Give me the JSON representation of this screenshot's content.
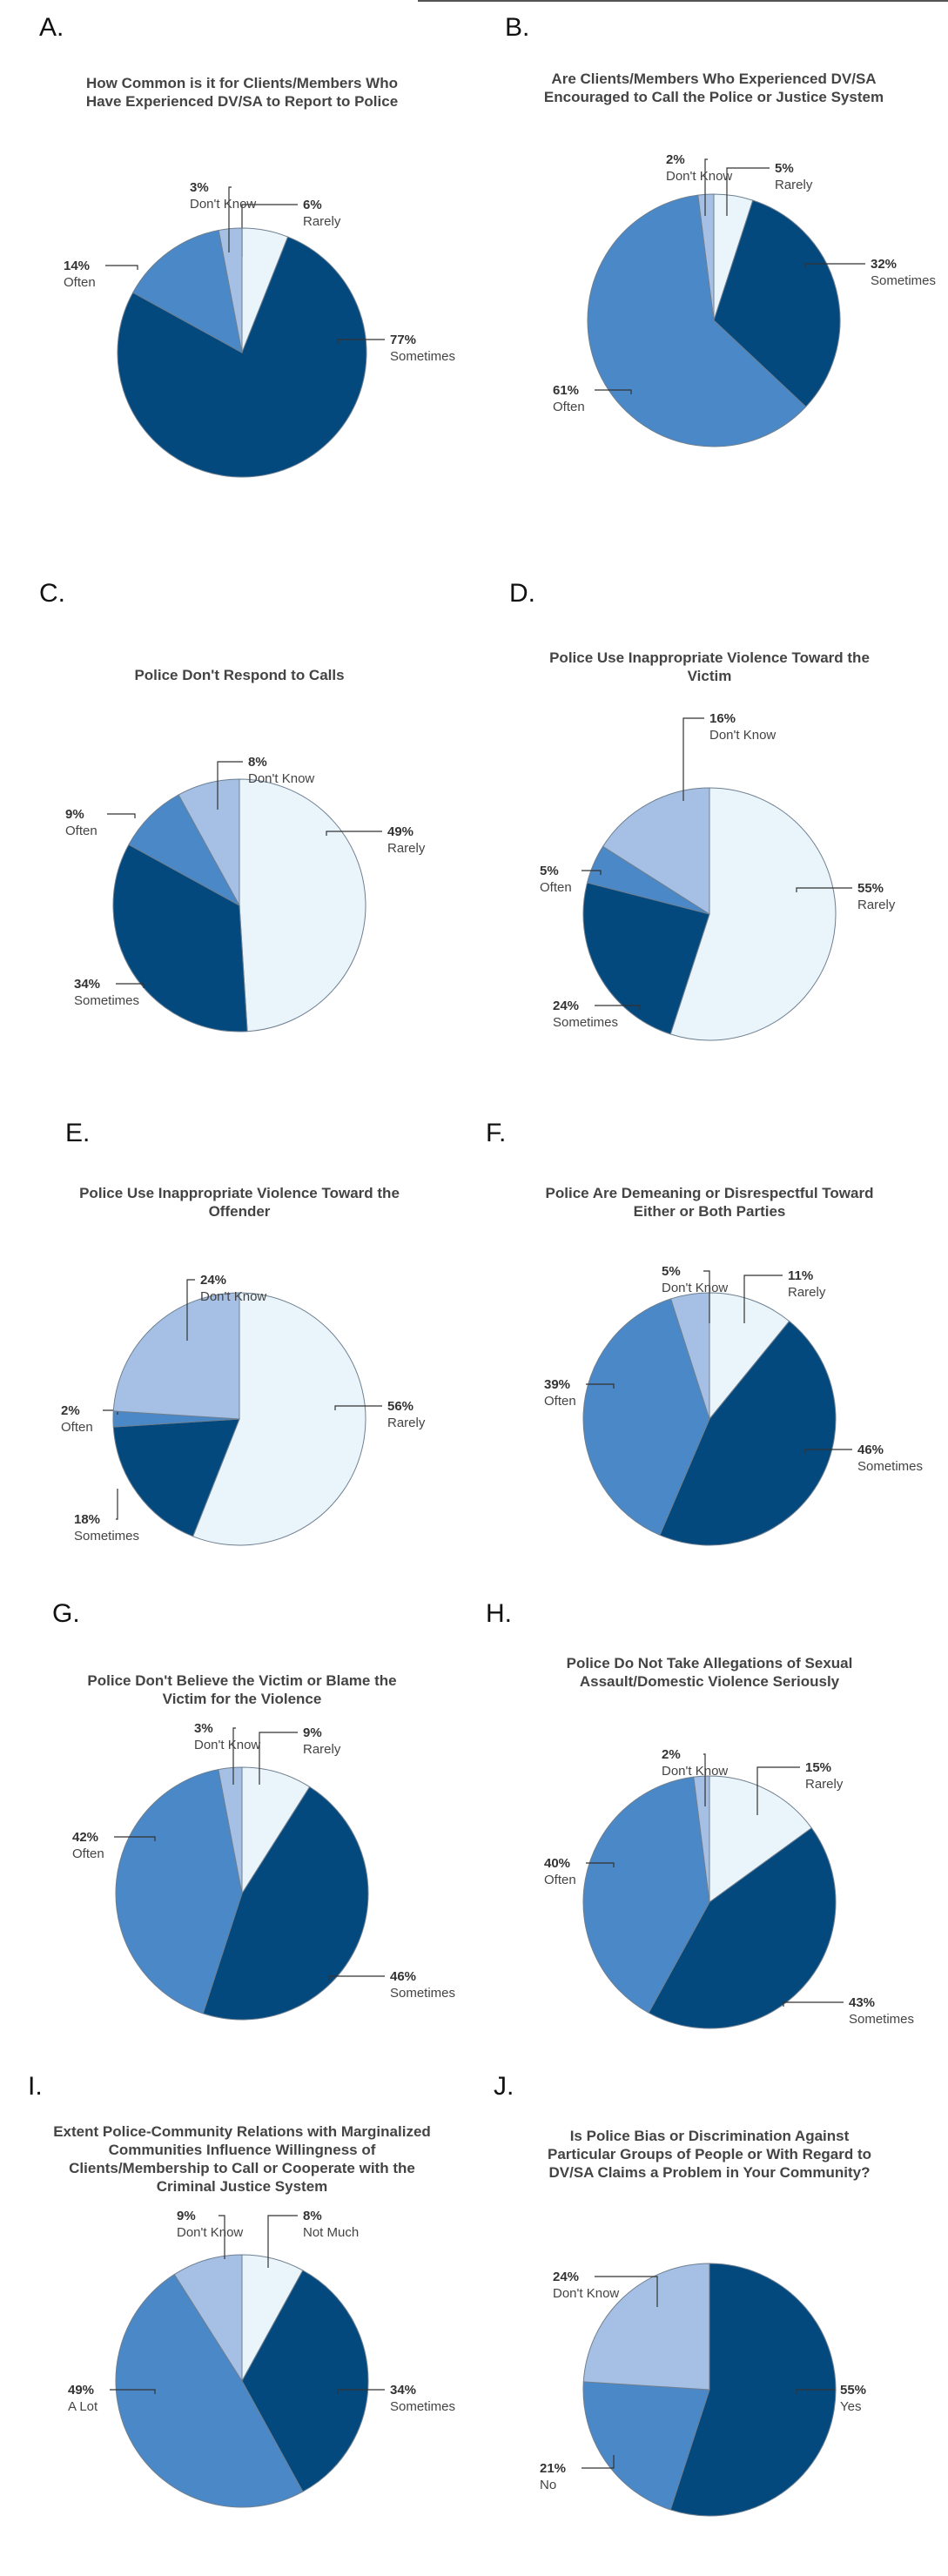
{
  "colors": {
    "Rarely": "#eaf4fb",
    "Sometimes": "#04497e",
    "Often": "#4a88c7",
    "Don't Know": "#a5c0e4",
    "Not Much": "#eaf4fb",
    "A Lot": "#4a88c7",
    "Yes": "#04497e",
    "No": "#4a88c7"
  },
  "chart_data": [
    {
      "letter": "A.",
      "type": "pie",
      "title": "How Common is it for Clients/Members Who Have Experienced DV/SA to Report to Police",
      "slices": [
        {
          "label": "Rarely",
          "pct": "6%",
          "value": 6
        },
        {
          "label": "Sometimes",
          "pct": "77%",
          "value": 77
        },
        {
          "label": "Often",
          "pct": "14%",
          "value": 14
        },
        {
          "label": "Don't Know",
          "pct": "3%",
          "value": 3
        }
      ]
    },
    {
      "letter": "B.",
      "type": "pie",
      "title": "Are Clients/Members Who Experienced DV/SA Encouraged to Call the Police or Justice System",
      "slices": [
        {
          "label": "Rarely",
          "pct": "5%",
          "value": 5
        },
        {
          "label": "Sometimes",
          "pct": "32%",
          "value": 32
        },
        {
          "label": "Often",
          "pct": "61%",
          "value": 61
        },
        {
          "label": "Don't Know",
          "pct": "2%",
          "value": 2
        }
      ]
    },
    {
      "letter": "C.",
      "type": "pie",
      "title": "Police Don't Respond to Calls",
      "slices": [
        {
          "label": "Rarely",
          "pct": "49%",
          "value": 49
        },
        {
          "label": "Sometimes",
          "pct": "34%",
          "value": 34
        },
        {
          "label": "Often",
          "pct": "9%",
          "value": 9
        },
        {
          "label": "Don't Know",
          "pct": "8%",
          "value": 8
        }
      ]
    },
    {
      "letter": "D.",
      "type": "pie",
      "title": "Police Use Inappropriate Violence Toward the Victim",
      "slices": [
        {
          "label": "Rarely",
          "pct": "55%",
          "value": 55
        },
        {
          "label": "Sometimes",
          "pct": "24%",
          "value": 24
        },
        {
          "label": "Often",
          "pct": "5%",
          "value": 5
        },
        {
          "label": "Don't Know",
          "pct": "16%",
          "value": 16
        }
      ]
    },
    {
      "letter": "E.",
      "type": "pie",
      "title": "Police Use Inappropriate Violence Toward the Offender",
      "slices": [
        {
          "label": "Rarely",
          "pct": "56%",
          "value": 56
        },
        {
          "label": "Sometimes",
          "pct": "18%",
          "value": 18
        },
        {
          "label": "Often",
          "pct": "2%",
          "value": 2
        },
        {
          "label": "Don't Know",
          "pct": "24%",
          "value": 24
        }
      ]
    },
    {
      "letter": "F.",
      "type": "pie",
      "title": "Police Are Demeaning or Disrespectful Toward Either or Both Parties",
      "slices": [
        {
          "label": "Rarely",
          "pct": "11%",
          "value": 11
        },
        {
          "label": "Sometimes",
          "pct": "46%",
          "value": 46
        },
        {
          "label": "Often",
          "pct": "39%",
          "value": 39
        },
        {
          "label": "Don't Know",
          "pct": "5%",
          "value": 5
        }
      ]
    },
    {
      "letter": "G.",
      "type": "pie",
      "title": "Police Don't Believe the Victim or Blame the Victim for the Violence",
      "slices": [
        {
          "label": "Rarely",
          "pct": "9%",
          "value": 9
        },
        {
          "label": "Sometimes",
          "pct": "46%",
          "value": 46
        },
        {
          "label": "Often",
          "pct": "42%",
          "value": 42
        },
        {
          "label": "Don't Know",
          "pct": "3%",
          "value": 3
        }
      ]
    },
    {
      "letter": "H.",
      "type": "pie",
      "title": "Police Do Not Take Allegations of Sexual Assault/Domestic Violence Seriously",
      "slices": [
        {
          "label": "Rarely",
          "pct": "15%",
          "value": 15
        },
        {
          "label": "Sometimes",
          "pct": "43%",
          "value": 43
        },
        {
          "label": "Often",
          "pct": "40%",
          "value": 40
        },
        {
          "label": "Don't Know",
          "pct": "2%",
          "value": 2
        }
      ]
    },
    {
      "letter": "I.",
      "type": "pie",
      "title": "Extent Police-Community Relations with Marginalized Communities Influence Willingness of Clients/Membership to Call or Cooperate with the Criminal Justice System",
      "slices": [
        {
          "label": "Not Much",
          "pct": "8%",
          "value": 8
        },
        {
          "label": "Sometimes",
          "pct": "34%",
          "value": 34
        },
        {
          "label": "A Lot",
          "pct": "49%",
          "value": 49
        },
        {
          "label": "Don't Know",
          "pct": "9%",
          "value": 9
        }
      ]
    },
    {
      "letter": "J.",
      "type": "pie",
      "title": "Is Police Bias or Discrimination Against Particular Groups of People or With Regard to DV/SA Claims a Problem in Your Community?",
      "slices": [
        {
          "label": "Yes",
          "pct": "55%",
          "value": 55
        },
        {
          "label": "No",
          "pct": "21%",
          "value": 21
        },
        {
          "label": "Don't Know",
          "pct": "24%",
          "value": 24
        }
      ]
    }
  ]
}
